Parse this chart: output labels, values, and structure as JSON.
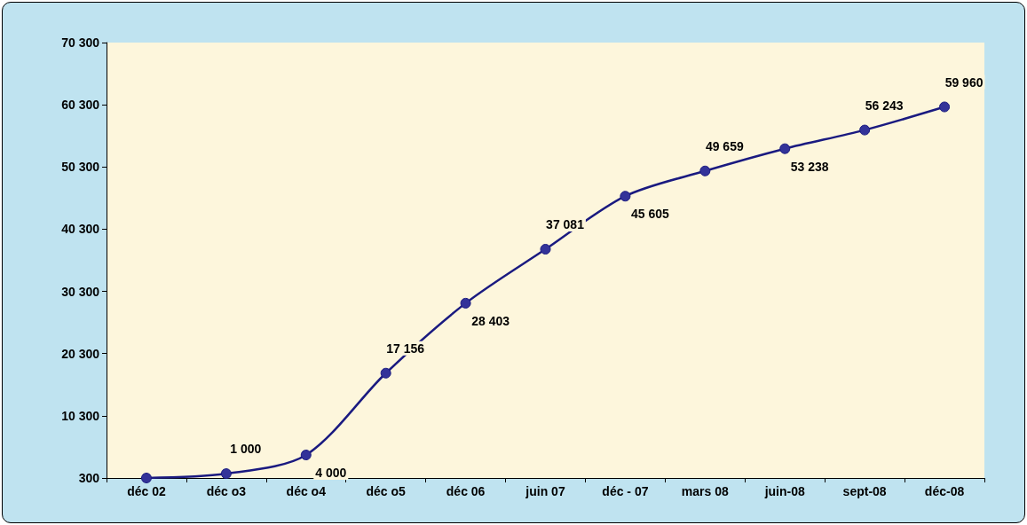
{
  "chart_data": {
    "type": "line",
    "categories": [
      "déc 02",
      "déc o3",
      "déc o4",
      "déc o5",
      "déc 06",
      "juin 07",
      "déc - 07",
      "mars 08",
      "juin-08",
      "sept-08",
      "déc-08"
    ],
    "series": [
      {
        "color": "#1a1a80",
        "values": [
          300,
          1000,
          4000,
          17156,
          28403,
          37081,
          45605,
          49659,
          53238,
          56243,
          59960
        ],
        "value_labels": [
          null,
          "1 000",
          "4 000",
          "17 156",
          "28 403",
          "37 081",
          "45 605",
          "49 659",
          "53 238",
          "56 243",
          "59 960"
        ]
      }
    ],
    "ylim": [
      300,
      70300
    ],
    "yticks": [
      {
        "value": 300,
        "label": "300"
      },
      {
        "value": 10300,
        "label": "10 300"
      },
      {
        "value": 20300,
        "label": "20 300"
      },
      {
        "value": 30300,
        "label": "30 300"
      },
      {
        "value": 40300,
        "label": "40 300"
      },
      {
        "value": 50300,
        "label": "50 300"
      },
      {
        "value": 60300,
        "label": "60 300"
      },
      {
        "value": 70300,
        "label": "70 300"
      }
    ],
    "grid": false,
    "marker": "circle",
    "line_style": "solid"
  }
}
